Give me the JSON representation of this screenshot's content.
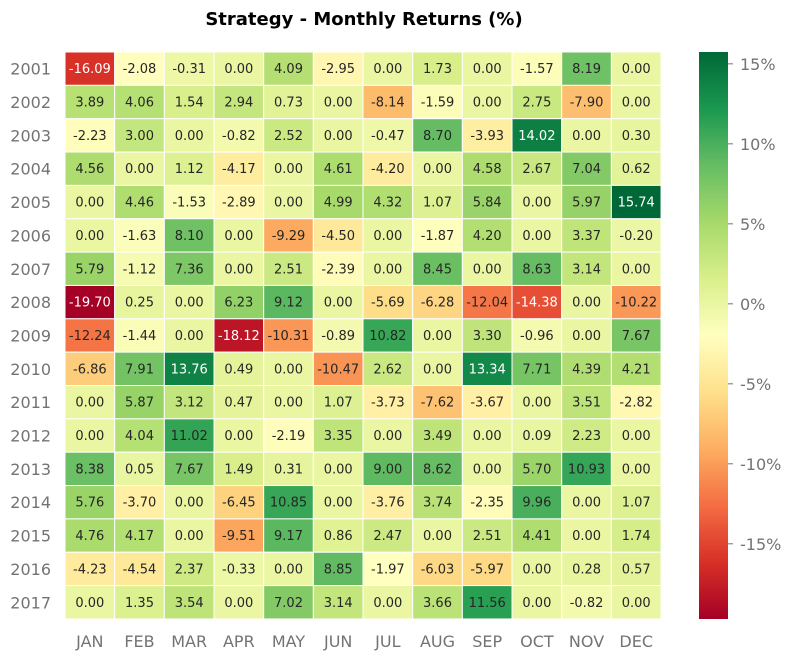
{
  "chart_data": {
    "type": "heatmap",
    "title": "Strategy - Monthly Returns (%)",
    "x_categories": [
      "JAN",
      "FEB",
      "MAR",
      "APR",
      "MAY",
      "JUN",
      "JUL",
      "AUG",
      "SEP",
      "OCT",
      "NOV",
      "DEC"
    ],
    "y_categories": [
      "2001",
      "2002",
      "2003",
      "2004",
      "2005",
      "2006",
      "2007",
      "2008",
      "2009",
      "2010",
      "2011",
      "2012",
      "2013",
      "2014",
      "2015",
      "2016",
      "2017"
    ],
    "values": [
      [
        -16.09,
        -2.08,
        -0.31,
        0.0,
        4.09,
        -2.95,
        0.0,
        1.73,
        0.0,
        -1.57,
        8.19,
        0.0
      ],
      [
        3.89,
        4.06,
        1.54,
        2.94,
        0.73,
        0.0,
        -8.14,
        -1.59,
        0.0,
        2.75,
        -7.9,
        0.0
      ],
      [
        -2.23,
        3.0,
        0.0,
        -0.82,
        2.52,
        0.0,
        -0.47,
        8.7,
        -3.93,
        14.02,
        0.0,
        0.3
      ],
      [
        4.56,
        0.0,
        1.12,
        -4.17,
        0.0,
        4.61,
        -4.2,
        0.0,
        4.58,
        2.67,
        7.04,
        0.62
      ],
      [
        0.0,
        4.46,
        -1.53,
        -2.89,
        0.0,
        4.99,
        4.32,
        1.07,
        5.84,
        0.0,
        5.97,
        15.74
      ],
      [
        0.0,
        -1.63,
        8.1,
        0.0,
        -9.29,
        -4.5,
        0.0,
        -1.87,
        4.2,
        0.0,
        3.37,
        -0.2
      ],
      [
        5.79,
        -1.12,
        7.36,
        0.0,
        2.51,
        -2.39,
        0.0,
        8.45,
        0.0,
        8.63,
        3.14,
        0.0
      ],
      [
        -19.7,
        0.25,
        0.0,
        6.23,
        9.12,
        0.0,
        -5.69,
        -6.28,
        -12.04,
        -14.38,
        0.0,
        -10.22
      ],
      [
        -12.24,
        -1.44,
        0.0,
        -18.12,
        -10.31,
        -0.89,
        10.82,
        0.0,
        3.3,
        -0.96,
        0.0,
        7.67
      ],
      [
        -6.86,
        7.91,
        13.76,
        0.49,
        0.0,
        -10.47,
        2.62,
        0.0,
        13.34,
        7.71,
        4.39,
        4.21
      ],
      [
        0.0,
        5.87,
        3.12,
        0.47,
        0.0,
        1.07,
        -3.73,
        -7.62,
        -3.67,
        0.0,
        3.51,
        -2.82
      ],
      [
        0.0,
        4.04,
        11.02,
        0.0,
        -2.19,
        3.35,
        0.0,
        3.49,
        0.0,
        0.09,
        2.23,
        0.0
      ],
      [
        8.38,
        0.05,
        7.67,
        1.49,
        0.31,
        0.0,
        9.0,
        8.62,
        0.0,
        5.7,
        10.93,
        0.0
      ],
      [
        5.76,
        -3.7,
        0.0,
        -6.45,
        10.85,
        0.0,
        -3.76,
        3.74,
        -2.35,
        9.96,
        0.0,
        1.07
      ],
      [
        4.76,
        4.17,
        0.0,
        -9.51,
        9.17,
        0.86,
        2.47,
        0.0,
        2.51,
        4.41,
        0.0,
        1.74
      ],
      [
        -4.23,
        -4.54,
        2.37,
        -0.33,
        0.0,
        8.85,
        -1.97,
        -6.03,
        -5.97,
        0.0,
        0.28,
        0.57
      ],
      [
        0.0,
        1.35,
        3.54,
        0.0,
        7.02,
        3.14,
        0.0,
        3.66,
        11.56,
        0.0,
        -0.82,
        0.0
      ]
    ],
    "colormap": "RdYlGn",
    "color_range": [
      -19.7,
      15.74
    ],
    "colorbar": {
      "ticks": [
        15,
        10,
        5,
        0,
        -5,
        -10,
        -15
      ],
      "tick_labels": [
        "15%",
        "10%",
        "5%",
        "0%",
        "-5%",
        "-10%",
        "-15%"
      ]
    },
    "annotations": "cell values with two decimals",
    "grid": false
  }
}
